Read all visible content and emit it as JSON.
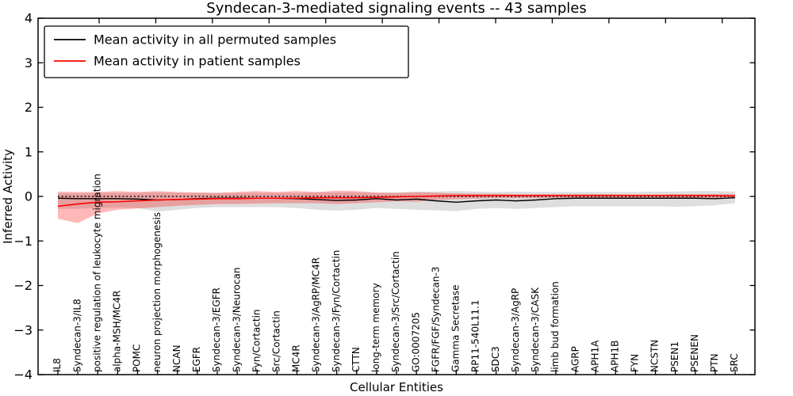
{
  "chart_data": {
    "type": "line",
    "title": "Syndecan-3-mediated signaling events -- 43 samples",
    "xlabel": "Cellular Entities",
    "ylabel": "Inferred Activity",
    "ylim": [
      -4,
      4
    ],
    "yticks": [
      -4,
      -3,
      -2,
      -1,
      0,
      1,
      2,
      3,
      4
    ],
    "grid": false,
    "legend_position": "upper left",
    "zero_line": {
      "y": 0,
      "style": "dotted",
      "color": "#000000"
    },
    "categories": [
      "IL8",
      "Syndecan-3/IL8",
      "positive regulation of leukocyte migration",
      "alpha-MSH/MC4R",
      "POMC",
      "neuron projection morphogenesis",
      "NCAN",
      "EGFR",
      "Syndecan-3/EGFR",
      "Syndecan-3/Neurocan",
      "Fyn/Cortactin",
      "Src/Cortactin",
      "MC4R",
      "Syndecan-3/AgRP/MC4R",
      "Syndecan-3/Fyn/Cortactin",
      "CTTN",
      "long-term memory",
      "Syndecan-3/Src/Cortactin",
      "GO:0007205",
      "FGFR/FGF/Syndecan-3",
      "Gamma Secretase",
      "RP11-540L11.1",
      "SDC3",
      "Syndecan-3/AgRP",
      "Syndecan-3/CASK",
      "limb bud formation",
      "AGRP",
      "APH1A",
      "APH1B",
      "FYN",
      "NCSTN",
      "PSEN1",
      "PSENEN",
      "PTN",
      "SRC"
    ],
    "series": [
      {
        "name": "Mean activity in all permuted samples",
        "color": "#000000",
        "band_color": "rgba(0,0,0,0.13)",
        "values": [
          -0.04,
          -0.05,
          -0.05,
          -0.05,
          -0.06,
          -0.08,
          -0.07,
          -0.05,
          -0.04,
          -0.04,
          -0.04,
          -0.04,
          -0.05,
          -0.07,
          -0.09,
          -0.08,
          -0.05,
          -0.08,
          -0.06,
          -0.1,
          -0.13,
          -0.1,
          -0.08,
          -0.1,
          -0.08,
          -0.05,
          -0.04,
          -0.04,
          -0.04,
          -0.04,
          -0.04,
          -0.04,
          -0.04,
          -0.05,
          -0.03
        ],
        "band_upper": [
          0.07,
          0.07,
          0.08,
          0.08,
          0.08,
          0.09,
          0.08,
          0.08,
          0.08,
          0.08,
          0.08,
          0.08,
          0.08,
          0.09,
          0.09,
          0.09,
          0.08,
          0.09,
          0.1,
          0.11,
          0.12,
          0.11,
          0.1,
          0.11,
          0.1,
          0.1,
          0.1,
          0.1,
          0.1,
          0.1,
          0.11,
          0.11,
          0.12,
          0.12,
          0.11
        ],
        "band_lower": [
          -0.28,
          -0.28,
          -0.26,
          -0.25,
          -0.26,
          -0.34,
          -0.3,
          -0.26,
          -0.24,
          -0.24,
          -0.24,
          -0.24,
          -0.26,
          -0.3,
          -0.32,
          -0.3,
          -0.26,
          -0.28,
          -0.3,
          -0.31,
          -0.33,
          -0.28,
          -0.26,
          -0.28,
          -0.26,
          -0.24,
          -0.22,
          -0.22,
          -0.22,
          -0.22,
          -0.22,
          -0.23,
          -0.22,
          -0.2,
          -0.15
        ]
      },
      {
        "name": "Mean activity in patient samples",
        "color": "#ff0000",
        "band_color": "rgba(255,0,0,0.28)",
        "values": [
          -0.22,
          -0.17,
          -0.13,
          -0.12,
          -0.1,
          -0.08,
          -0.07,
          -0.06,
          -0.05,
          -0.05,
          -0.04,
          -0.04,
          -0.04,
          -0.03,
          -0.03,
          -0.03,
          -0.02,
          -0.01,
          0.0,
          0.01,
          0.02,
          0.02,
          0.02,
          0.02,
          0.02,
          0.02,
          0.02,
          0.02,
          0.02,
          0.02,
          0.02,
          0.02,
          0.02,
          0.02,
          0.01
        ],
        "band_upper": [
          0.11,
          0.1,
          0.1,
          0.12,
          0.1,
          0.12,
          0.1,
          0.09,
          0.08,
          0.1,
          0.12,
          0.1,
          0.12,
          0.1,
          0.13,
          0.12,
          0.09,
          0.08,
          0.1,
          0.08,
          0.07,
          0.06,
          0.06,
          0.05,
          0.05,
          0.05,
          0.05,
          0.05,
          0.05,
          0.04,
          0.04,
          0.05,
          0.05,
          0.05,
          0.05
        ],
        "band_lower": [
          -0.5,
          -0.6,
          -0.38,
          -0.3,
          -0.27,
          -0.24,
          -0.21,
          -0.19,
          -0.17,
          -0.17,
          -0.16,
          -0.15,
          -0.15,
          -0.15,
          -0.17,
          -0.15,
          -0.13,
          -0.11,
          -0.12,
          -0.08,
          -0.06,
          -0.05,
          -0.04,
          -0.04,
          -0.04,
          -0.03,
          -0.03,
          -0.03,
          -0.03,
          -0.03,
          -0.03,
          -0.03,
          -0.04,
          -0.04,
          -0.03
        ]
      }
    ],
    "legend": [
      {
        "label": "Mean activity in all permuted samples",
        "color": "#000000"
      },
      {
        "label": "Mean activity in patient samples",
        "color": "#ff0000"
      }
    ]
  }
}
